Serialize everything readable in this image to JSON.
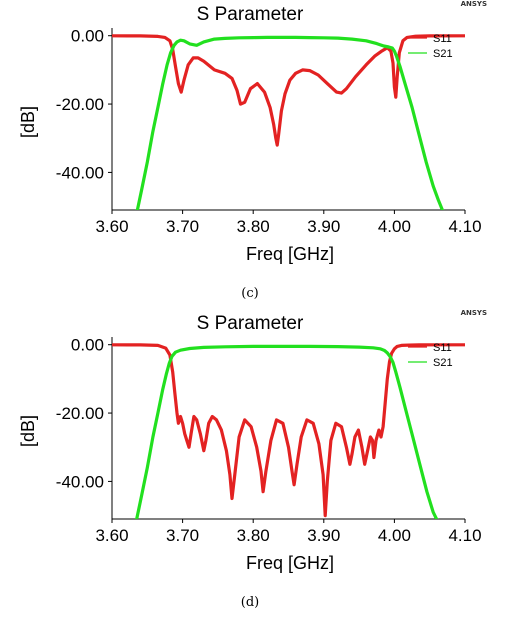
{
  "chart_data": [
    {
      "type": "line",
      "title": "S Parameter",
      "brand": "ANSYS",
      "caption": "(c)",
      "xlabel": "Freq [GHz]",
      "ylabel": "[dB]",
      "xlim": [
        3.6,
        4.1
      ],
      "ylim": [
        -51,
        0.5
      ],
      "xticks": [
        "3.60",
        "3.70",
        "3.80",
        "3.90",
        "4.00",
        "4.10"
      ],
      "yticks": [
        "0.00",
        "-20.00",
        "-40.00"
      ],
      "legend_position": "top-right",
      "colors": {
        "S11": "#e32222",
        "S21": "#22e01f"
      },
      "series": [
        {
          "name": "S11",
          "x": [
            3.6,
            3.64,
            3.665,
            3.675,
            3.682,
            3.686,
            3.69,
            3.694,
            3.698,
            3.702,
            3.708,
            3.715,
            3.722,
            3.73,
            3.745,
            3.76,
            3.77,
            3.777,
            3.782,
            3.788,
            3.796,
            3.806,
            3.816,
            3.824,
            3.829,
            3.832,
            3.834,
            3.836,
            3.84,
            3.845,
            3.852,
            3.86,
            3.87,
            3.88,
            3.892,
            3.905,
            3.918,
            3.925,
            3.932,
            3.945,
            3.96,
            3.972,
            3.982,
            3.99,
            3.995,
            3.998,
            4.0,
            4.002,
            4.004,
            4.007,
            4.012,
            4.018,
            4.03,
            4.05,
            4.1
          ],
          "y": [
            -0.02,
            -0.05,
            -0.2,
            -0.5,
            -1.5,
            -4,
            -9,
            -14,
            -16.5,
            -13,
            -8.5,
            -6.5,
            -6.5,
            -7.5,
            -10,
            -11,
            -12.5,
            -16,
            -20,
            -19.5,
            -15.5,
            -14,
            -16.5,
            -21,
            -26,
            -30,
            -32,
            -29,
            -22,
            -17,
            -13,
            -11,
            -10,
            -10.2,
            -11.5,
            -14,
            -16.5,
            -16.8,
            -15.5,
            -12,
            -8.5,
            -6,
            -4.5,
            -3.5,
            -4.5,
            -8,
            -15,
            -18,
            -12,
            -5,
            -1.5,
            -0.5,
            -0.15,
            -0.05,
            -0.02
          ]
        },
        {
          "name": "S21",
          "x": [
            3.636,
            3.642,
            3.65,
            3.658,
            3.666,
            3.672,
            3.678,
            3.683,
            3.688,
            3.692,
            3.697,
            3.702,
            3.71,
            3.72,
            3.73,
            3.745,
            3.76,
            3.78,
            3.8,
            3.82,
            3.84,
            3.86,
            3.88,
            3.9,
            3.92,
            3.94,
            3.96,
            3.975,
            3.985,
            3.992,
            3.997,
            4.0,
            4.003,
            4.008,
            4.015,
            4.025,
            4.035,
            4.045,
            4.055,
            4.062,
            4.068
          ],
          "y": [
            -51,
            -45,
            -37,
            -28,
            -20,
            -14,
            -8.5,
            -5,
            -2.8,
            -1.8,
            -1.3,
            -1.5,
            -2.4,
            -2.8,
            -1.8,
            -1.0,
            -0.8,
            -0.6,
            -0.55,
            -0.5,
            -0.5,
            -0.5,
            -0.55,
            -0.6,
            -0.7,
            -1.0,
            -1.5,
            -2.3,
            -3.0,
            -3.3,
            -3.6,
            -4.5,
            -6,
            -9,
            -14,
            -21,
            -29,
            -37,
            -44,
            -48,
            -51
          ]
        }
      ]
    },
    {
      "type": "line",
      "title": "S Parameter",
      "brand": "ANSYS",
      "caption": "(d)",
      "xlabel": "Freq [GHz]",
      "ylabel": "[dB]",
      "xlim": [
        3.6,
        4.1
      ],
      "ylim": [
        -51,
        0.5
      ],
      "xticks": [
        "3.60",
        "3.70",
        "3.80",
        "3.90",
        "4.00",
        "4.10"
      ],
      "yticks": [
        "0.00",
        "-20.00",
        "-40.00"
      ],
      "legend_position": "top-right",
      "colors": {
        "S11": "#e32222",
        "S21": "#22e01f"
      },
      "series": [
        {
          "name": "S11",
          "x": [
            3.6,
            3.64,
            3.665,
            3.676,
            3.682,
            3.686,
            3.689,
            3.692,
            3.694,
            3.697,
            3.7,
            3.703,
            3.706,
            3.709,
            3.712,
            3.716,
            3.72,
            3.725,
            3.73,
            3.733,
            3.737,
            3.742,
            3.748,
            3.755,
            3.762,
            3.767,
            3.77,
            3.774,
            3.78,
            3.788,
            3.797,
            3.805,
            3.811,
            3.814,
            3.818,
            3.825,
            3.833,
            3.842,
            3.85,
            3.855,
            3.858,
            3.862,
            3.868,
            3.876,
            3.885,
            3.893,
            3.899,
            3.902,
            3.905,
            3.91,
            3.917,
            3.925,
            3.932,
            3.937,
            3.94,
            3.944,
            3.949,
            3.954,
            3.958,
            3.962,
            3.966,
            3.969,
            3.971,
            3.974,
            3.978,
            3.981,
            3.984,
            3.987,
            3.99,
            3.993,
            3.996,
            4.0,
            4.004,
            4.01,
            4.02,
            4.035,
            4.06,
            4.1
          ],
          "y": [
            -0.02,
            -0.05,
            -0.2,
            -1,
            -3,
            -8,
            -14,
            -20,
            -23,
            -21,
            -23,
            -26,
            -28,
            -30,
            -26,
            -21,
            -22,
            -26,
            -31,
            -28,
            -23,
            -21,
            -22,
            -25,
            -31,
            -38,
            -45,
            -38,
            -27,
            -22,
            -24,
            -30,
            -37,
            -43,
            -37,
            -28,
            -22,
            -23,
            -30,
            -37,
            -41,
            -35,
            -27,
            -22,
            -23,
            -29,
            -38,
            -50,
            -40,
            -28,
            -23,
            -24,
            -30,
            -35,
            -32,
            -27,
            -25,
            -30,
            -35,
            -31,
            -27,
            -28,
            -33,
            -28,
            -25,
            -27,
            -24,
            -17,
            -10,
            -5,
            -2.5,
            -1.2,
            -0.5,
            -0.2,
            -0.1,
            -0.05,
            -0.03,
            -0.02
          ]
        },
        {
          "name": "S21",
          "x": [
            3.635,
            3.642,
            3.65,
            3.658,
            3.665,
            3.672,
            3.677,
            3.681,
            3.685,
            3.69,
            3.697,
            3.71,
            3.73,
            3.76,
            3.8,
            3.84,
            3.88,
            3.92,
            3.95,
            3.97,
            3.98,
            3.986,
            3.99,
            3.994,
            3.998,
            4.002,
            4.008,
            4.016,
            4.026,
            4.036,
            4.046,
            4.055,
            4.062
          ],
          "y": [
            -51,
            -44,
            -36,
            -27,
            -20,
            -13,
            -8.5,
            -5.5,
            -3.4,
            -2.2,
            -1.6,
            -1.1,
            -0.8,
            -0.6,
            -0.5,
            -0.5,
            -0.5,
            -0.55,
            -0.7,
            -0.9,
            -1.2,
            -1.7,
            -2.4,
            -3.5,
            -5.2,
            -8,
            -12.5,
            -19,
            -27,
            -35,
            -43,
            -49,
            -52
          ]
        }
      ]
    }
  ]
}
